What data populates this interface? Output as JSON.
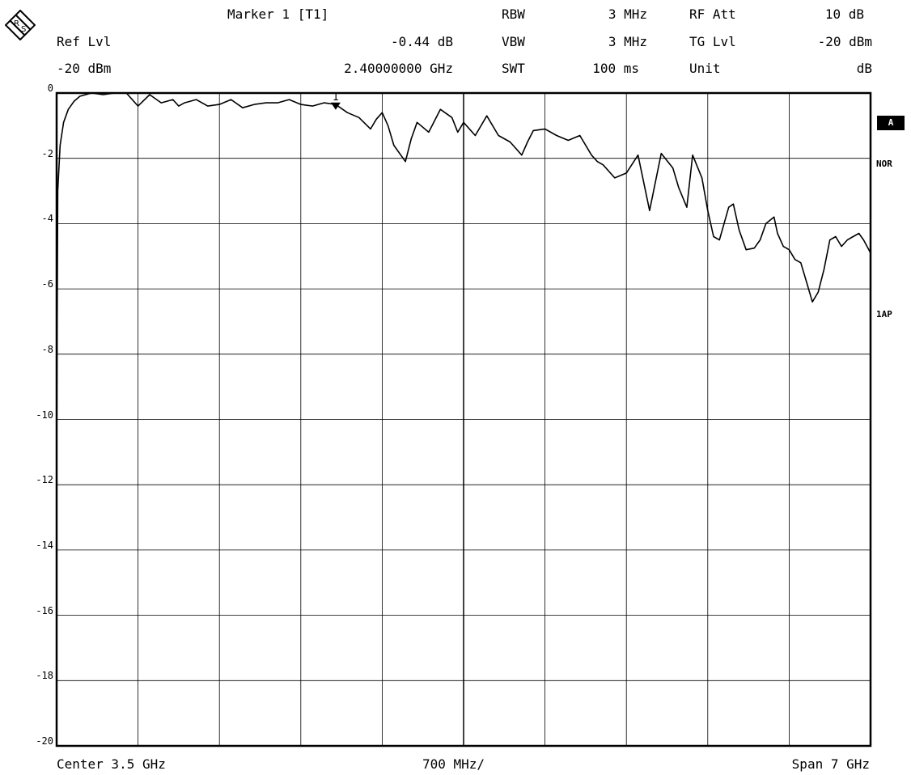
{
  "header": {
    "marker_title": "Marker 1 [T1]",
    "ref_lvl_label": "Ref Lvl",
    "ref_lvl_value": "-20 dBm",
    "marker_level": "-0.44 dB",
    "marker_freq": "2.40000000 GHz",
    "rbw_label": "RBW",
    "rbw_value": "3 MHz",
    "vbw_label": "VBW",
    "vbw_value": "3 MHz",
    "swt_label": "SWT",
    "swt_value": "100 ms",
    "rfatt_label": "RF Att",
    "rfatt_value": "10 dB",
    "tglvl_label": "TG Lvl",
    "tglvl_value": "-20 dBm",
    "unit_label": "Unit",
    "unit_value": "dB"
  },
  "footer": {
    "center": "Center 3.5 GHz",
    "per_div": "700 MHz/",
    "span": "Span 7 GHz"
  },
  "side_labels": {
    "trace": "A",
    "mode": "NOR",
    "detector": "1AP"
  },
  "logo_icon": "rohde-schwarz-logo",
  "chart_data": {
    "type": "line",
    "title": "",
    "xlabel": "",
    "ylabel": "",
    "x_unit": "GHz",
    "xlim": [
      0,
      7
    ],
    "ylim": [
      -20,
      0
    ],
    "y_ticks": [
      0,
      -2,
      -4,
      -6,
      -8,
      -10,
      -12,
      -14,
      -16,
      -18,
      -20
    ],
    "y_tick_labels": [
      "0",
      "-2",
      "-4",
      "-6",
      "-8",
      "-10",
      "-12",
      "-14",
      "-16",
      "-18",
      "-20"
    ],
    "grid": true,
    "marker": {
      "label": "1",
      "x": 2.4,
      "y": -0.44
    },
    "series": [
      {
        "x": [
          0.0,
          0.005,
          0.01,
          0.03,
          0.06,
          0.1,
          0.15,
          0.2,
          0.3,
          0.4,
          0.5,
          0.6,
          0.7,
          0.8,
          0.9,
          1.0,
          1.05,
          1.1,
          1.2,
          1.3,
          1.4,
          1.5,
          1.6,
          1.7,
          1.8,
          1.9,
          2.0,
          2.1,
          2.2,
          2.3,
          2.4,
          2.5,
          2.6,
          2.7,
          2.75,
          2.8,
          2.85,
          2.9,
          3.0,
          3.05,
          3.1,
          3.2,
          3.3,
          3.4,
          3.45,
          3.5,
          3.6,
          3.7,
          3.8,
          3.9,
          4.0,
          4.05,
          4.1,
          4.2,
          4.3,
          4.4,
          4.5,
          4.6,
          4.65,
          4.7,
          4.8,
          4.9,
          5.0,
          5.1,
          5.2,
          5.3,
          5.35,
          5.42,
          5.47,
          5.55,
          5.6,
          5.65,
          5.7,
          5.78,
          5.82,
          5.87,
          5.93,
          6.0,
          6.05,
          6.1,
          6.17,
          6.2,
          6.25,
          6.3,
          6.35,
          6.4,
          6.45,
          6.5,
          6.55,
          6.6,
          6.65,
          6.7,
          6.75,
          6.8,
          6.85,
          6.9,
          6.94,
          6.97,
          7.0
        ],
        "y": [
          -11.5,
          -7.0,
          -3.0,
          -1.6,
          -0.9,
          -0.5,
          -0.25,
          -0.1,
          0.0,
          -0.05,
          0.0,
          0.0,
          -0.4,
          -0.05,
          -0.3,
          -0.2,
          -0.4,
          -0.3,
          -0.2,
          -0.4,
          -0.35,
          -0.2,
          -0.45,
          -0.35,
          -0.3,
          -0.3,
          -0.2,
          -0.35,
          -0.4,
          -0.3,
          -0.35,
          -0.6,
          -0.75,
          -1.1,
          -0.8,
          -0.6,
          -1.0,
          -1.6,
          -2.1,
          -1.4,
          -0.9,
          -1.2,
          -0.5,
          -0.75,
          -1.2,
          -0.9,
          -1.3,
          -0.7,
          -1.3,
          -1.5,
          -1.9,
          -1.5,
          -1.15,
          -1.1,
          -1.3,
          -1.45,
          -1.3,
          -1.9,
          -2.1,
          -2.2,
          -2.6,
          -2.45,
          -1.9,
          -3.6,
          -1.85,
          -2.3,
          -2.9,
          -3.5,
          -1.9,
          -2.6,
          -3.6,
          -4.4,
          -4.5,
          -3.5,
          -3.4,
          -4.2,
          -4.8,
          -4.75,
          -4.5,
          -4.0,
          -3.8,
          -4.3,
          -4.7,
          -4.8,
          -5.1,
          -5.2,
          -5.8,
          -6.4,
          -6.1,
          -5.4,
          -4.5,
          -4.4,
          -4.7,
          -4.5,
          -4.4,
          -4.3,
          -4.5,
          -4.7,
          -4.9
        ]
      }
    ]
  }
}
